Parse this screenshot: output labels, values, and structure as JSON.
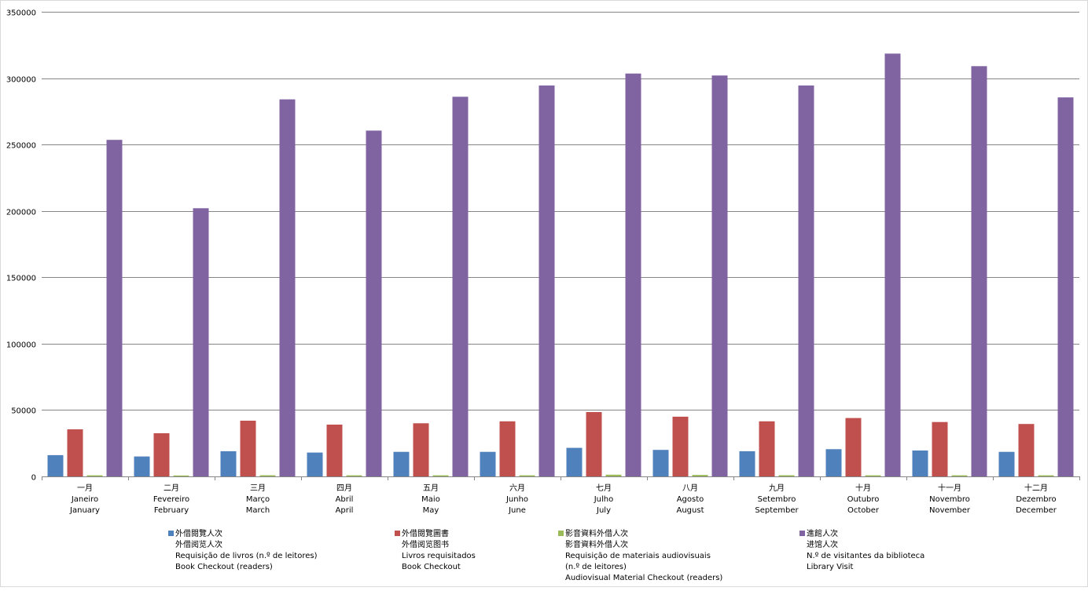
{
  "chart_data": {
    "type": "bar",
    "title": "",
    "xlabel": "",
    "ylabel": "",
    "ylim": [
      0,
      350000
    ],
    "yticks": [
      0,
      50000,
      100000,
      150000,
      200000,
      250000,
      300000,
      350000
    ],
    "ytick_labels": [
      "0",
      "50000",
      "100000",
      "150000",
      "200000",
      "250000",
      "300000",
      "350000"
    ],
    "grid": true,
    "legend_position": "bottom",
    "categories": [
      [
        "一月",
        "Janeiro",
        "January"
      ],
      [
        "二月",
        "Fevereiro",
        "February"
      ],
      [
        "三月",
        "Março",
        "March"
      ],
      [
        "四月",
        "Abril",
        "April"
      ],
      [
        "五月",
        "Maio",
        "May"
      ],
      [
        "六月",
        "Junho",
        "June"
      ],
      [
        "七月",
        "Julho",
        "July"
      ],
      [
        "八月",
        "Agosto",
        "August"
      ],
      [
        "九月",
        "Setembro",
        "September"
      ],
      [
        "十月",
        "Outubro",
        "October"
      ],
      [
        "十一月",
        "Novembro",
        "November"
      ],
      [
        "十二月",
        "Dezembro",
        "December"
      ]
    ],
    "series": [
      {
        "name_lines": [
          "外借閱覽人次",
          "外借阅览人次",
          "Requisição de livros (n.º de leitores)",
          "Book Checkout (readers)"
        ],
        "color": "#4f81bd",
        "values": [
          16000,
          15000,
          19000,
          18000,
          18500,
          18500,
          21500,
          20000,
          19000,
          20500,
          19500,
          18500
        ]
      },
      {
        "name_lines": [
          "外借閱覽圖書",
          "外借阅览图书",
          "Livros requisitados",
          "Book Checkout"
        ],
        "color": "#c0504d",
        "values": [
          35500,
          32500,
          42000,
          39000,
          40000,
          41500,
          48500,
          45000,
          41500,
          44000,
          41000,
          39500
        ]
      },
      {
        "name_lines": [
          "影音資料外借人次",
          "影音資料外借人次",
          "Requisição de materiais audiovisuais",
          "(n.º de leitores)",
          "Audiovisual Material Checkout (readers)"
        ],
        "color": "#9bbb59",
        "values": [
          800,
          700,
          900,
          800,
          800,
          800,
          1300,
          1100,
          900,
          800,
          800,
          800
        ]
      },
      {
        "name_lines": [
          "進館人次",
          "进馆人次",
          "N.º de visitantes da biblioteca",
          "Library Visit"
        ],
        "color": "#8064a2",
        "values": [
          253500,
          202000,
          284000,
          260500,
          286000,
          294500,
          303500,
          302000,
          294500,
          318500,
          309000,
          285500
        ]
      }
    ]
  }
}
